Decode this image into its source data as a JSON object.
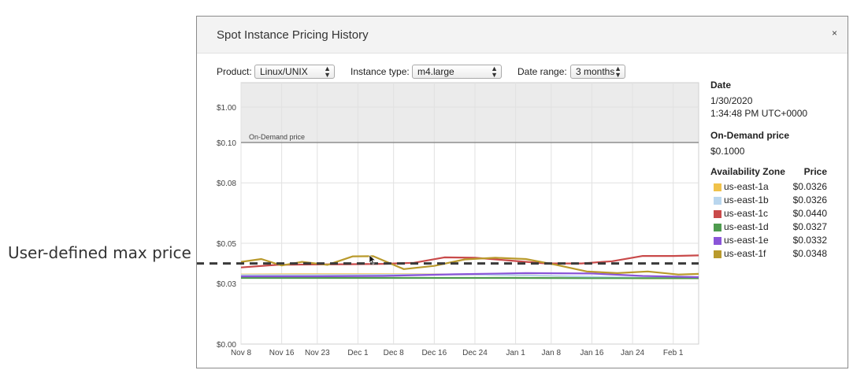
{
  "annotation": {
    "text": "User-defined max price"
  },
  "dialog": {
    "title": "Spot Instance Pricing History",
    "close_label": "×"
  },
  "controls": {
    "product_label": "Product:",
    "product_value": "Linux/UNIX",
    "instance_label": "Instance type:",
    "instance_value": "m4.large",
    "range_label": "Date range:",
    "range_value": "3 months"
  },
  "details": {
    "date_heading": "Date",
    "date_value": "1/30/2020",
    "time_value": "1:34:48 PM UTC+0000",
    "ondemand_heading": "On-Demand price",
    "ondemand_value": "$0.1000",
    "zone_heading": "Availability Zone",
    "price_heading": "Price",
    "zones": [
      {
        "name": "us-east-1a",
        "price": "$0.0326",
        "color": "#f0c24a"
      },
      {
        "name": "us-east-1b",
        "price": "$0.0326",
        "color": "#b9d6ee"
      },
      {
        "name": "us-east-1c",
        "price": "$0.0440",
        "color": "#c94a4a"
      },
      {
        "name": "us-east-1d",
        "price": "$0.0327",
        "color": "#4e9b4e"
      },
      {
        "name": "us-east-1e",
        "price": "$0.0332",
        "color": "#8a55d8"
      },
      {
        "name": "us-east-1f",
        "price": "$0.0348",
        "color": "#b99a2c"
      }
    ]
  },
  "chart_data": {
    "type": "line",
    "ylabel": "",
    "xlabel": "",
    "y_ticks": [
      "$1.00",
      "$0.10",
      "$0.08",
      "$0.05",
      "$0.03",
      "$0.00"
    ],
    "x_ticks": [
      "Nov 8",
      "Nov 16",
      "Nov 23",
      "Dec 1",
      "Dec 8",
      "Dec 16",
      "Dec 24",
      "Jan 1",
      "Jan 8",
      "Jan 16",
      "Jan 24",
      "Feb 1"
    ],
    "x_range": [
      "2019-11-08",
      "2020-02-06"
    ],
    "ondemand_price": 0.1,
    "ondemand_label": "On-Demand price",
    "max_price": 0.04,
    "grid": true,
    "series": [
      {
        "name": "us-east-1a",
        "color": "#f0c24a",
        "x": [
          "2019-11-08",
          "2019-11-20",
          "2019-12-01",
          "2019-12-12",
          "2019-12-24",
          "2020-01-05",
          "2020-01-16",
          "2020-01-26",
          "2020-02-06"
        ],
        "y": [
          0.0345,
          0.0346,
          0.0346,
          0.0346,
          0.0345,
          0.034,
          0.0332,
          0.0326,
          0.0326
        ]
      },
      {
        "name": "us-east-1b",
        "color": "#b9d6ee",
        "x": [
          "2019-11-08",
          "2019-11-20",
          "2019-12-01",
          "2019-12-12",
          "2019-12-24",
          "2020-01-05",
          "2020-01-16",
          "2020-01-26",
          "2020-02-06"
        ],
        "y": [
          0.0342,
          0.0342,
          0.0343,
          0.0344,
          0.0345,
          0.034,
          0.0334,
          0.0328,
          0.0326
        ]
      },
      {
        "name": "us-east-1c",
        "color": "#c94a4a",
        "x": [
          "2019-11-08",
          "2019-11-15",
          "2019-11-22",
          "2019-11-29",
          "2019-12-06",
          "2019-12-12",
          "2019-12-18",
          "2019-12-24",
          "2019-12-31",
          "2020-01-07",
          "2020-01-14",
          "2020-01-20",
          "2020-01-26",
          "2020-02-01",
          "2020-02-06"
        ],
        "y": [
          0.038,
          0.0393,
          0.0395,
          0.0396,
          0.0398,
          0.0403,
          0.043,
          0.0428,
          0.0414,
          0.04,
          0.04,
          0.0411,
          0.0437,
          0.0437,
          0.044
        ]
      },
      {
        "name": "us-east-1d",
        "color": "#4e9b4e",
        "x": [
          "2019-11-08",
          "2019-11-25",
          "2019-12-12",
          "2019-12-31",
          "2020-01-16",
          "2020-02-06"
        ],
        "y": [
          0.0328,
          0.0328,
          0.0328,
          0.0328,
          0.0327,
          0.0327
        ]
      },
      {
        "name": "us-east-1e",
        "color": "#8a55d8",
        "x": [
          "2019-11-08",
          "2019-11-22",
          "2019-12-06",
          "2019-12-20",
          "2020-01-03",
          "2020-01-16",
          "2020-01-26",
          "2020-02-06"
        ],
        "y": [
          0.0336,
          0.0336,
          0.0338,
          0.0346,
          0.0352,
          0.035,
          0.0338,
          0.0332
        ]
      },
      {
        "name": "us-east-1f",
        "color": "#b99a2c",
        "x": [
          "2019-11-08",
          "2019-11-12",
          "2019-11-16",
          "2019-11-20",
          "2019-11-25",
          "2019-11-30",
          "2019-12-04",
          "2019-12-10",
          "2019-12-16",
          "2019-12-22",
          "2019-12-28",
          "2020-01-03",
          "2020-01-09",
          "2020-01-15",
          "2020-01-21",
          "2020-01-27",
          "2020-02-02",
          "2020-02-06"
        ],
        "y": [
          0.0408,
          0.0422,
          0.039,
          0.0408,
          0.0393,
          0.0435,
          0.0436,
          0.0372,
          0.0388,
          0.042,
          0.0428,
          0.0422,
          0.0393,
          0.036,
          0.0352,
          0.036,
          0.0345,
          0.0348
        ]
      }
    ]
  }
}
